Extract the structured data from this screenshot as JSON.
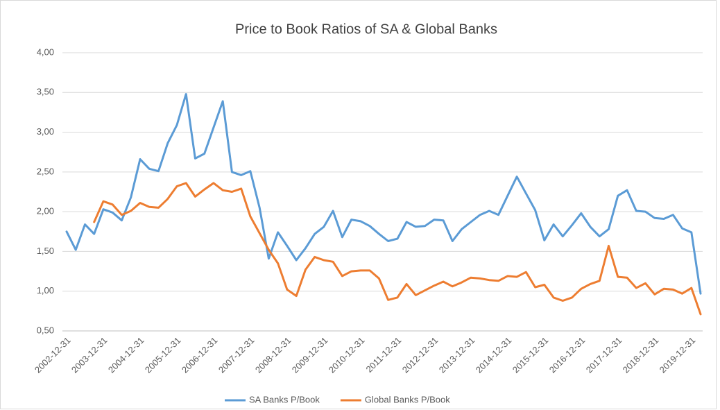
{
  "chart_data": {
    "type": "line",
    "title": "Price to Book Ratios of SA & Global Banks",
    "categories": [
      "2002-12-31",
      null,
      null,
      null,
      "2003-12-31",
      null,
      null,
      null,
      "2004-12-31",
      null,
      null,
      null,
      "2005-12-31",
      null,
      null,
      null,
      "2006-12-31",
      null,
      null,
      null,
      "2007-12-31",
      null,
      null,
      null,
      "2008-12-31",
      null,
      null,
      null,
      "2009-12-31",
      null,
      null,
      null,
      "2010-12-31",
      null,
      null,
      null,
      "2011-12-31",
      null,
      null,
      null,
      "2012-12-31",
      null,
      null,
      null,
      "2013-12-31",
      null,
      null,
      null,
      "2014-12-31",
      null,
      null,
      null,
      "2015-12-31",
      null,
      null,
      null,
      "2016-12-31",
      null,
      null,
      null,
      "2017-12-31",
      null,
      null,
      null,
      "2018-12-31",
      null,
      null,
      null,
      "2019-12-31",
      null
    ],
    "series": [
      {
        "name": "SA Banks P/Book",
        "color": "#5b9bd5",
        "values": [
          1.75,
          1.52,
          1.84,
          1.72,
          2.03,
          1.99,
          1.89,
          2.18,
          2.66,
          2.54,
          2.51,
          2.86,
          3.09,
          3.48,
          2.67,
          2.73,
          3.06,
          3.39,
          2.5,
          2.46,
          2.51,
          2.05,
          1.41,
          1.74,
          1.57,
          1.39,
          1.54,
          1.72,
          1.81,
          2.01,
          1.68,
          1.9,
          1.88,
          1.82,
          1.72,
          1.63,
          1.66,
          1.87,
          1.81,
          1.82,
          1.9,
          1.89,
          1.63,
          1.78,
          1.87,
          1.96,
          2.01,
          1.96,
          2.2,
          2.44,
          2.23,
          2.02,
          1.64,
          1.84,
          1.69,
          1.83,
          1.98,
          1.81,
          1.69,
          1.78,
          2.2,
          2.27,
          2.01,
          2.0,
          1.92,
          1.91,
          1.96,
          1.79,
          1.74,
          0.97
        ]
      },
      {
        "name": "Global Banks P/Book",
        "color": "#ed7d31",
        "values": [
          null,
          null,
          null,
          1.87,
          2.13,
          2.09,
          1.96,
          2.01,
          2.11,
          2.06,
          2.05,
          2.16,
          2.32,
          2.36,
          2.19,
          2.28,
          2.36,
          2.27,
          2.25,
          2.29,
          1.94,
          1.73,
          1.52,
          1.35,
          1.02,
          0.94,
          1.27,
          1.43,
          1.39,
          1.37,
          1.19,
          1.25,
          1.26,
          1.26,
          1.16,
          0.89,
          0.92,
          1.09,
          0.95,
          1.01,
          1.07,
          1.12,
          1.06,
          1.11,
          1.17,
          1.16,
          1.14,
          1.13,
          1.19,
          1.18,
          1.24,
          1.05,
          1.08,
          0.92,
          0.88,
          0.92,
          1.03,
          1.09,
          1.13,
          1.57,
          1.18,
          1.17,
          1.04,
          1.1,
          0.96,
          1.03,
          1.02,
          0.97,
          1.04,
          0.71
        ]
      }
    ],
    "ylim": [
      0.5,
      4.0
    ],
    "yticks": [
      {
        "value": 0.5,
        "label": "0,50"
      },
      {
        "value": 1.0,
        "label": "1,00"
      },
      {
        "value": 1.5,
        "label": "1,50"
      },
      {
        "value": 2.0,
        "label": "2,00"
      },
      {
        "value": 2.5,
        "label": "2,50"
      },
      {
        "value": 3.0,
        "label": "3,00"
      },
      {
        "value": 3.5,
        "label": "3,50"
      },
      {
        "value": 4.0,
        "label": "4,00"
      }
    ],
    "grid": true,
    "legend": "bottom"
  }
}
